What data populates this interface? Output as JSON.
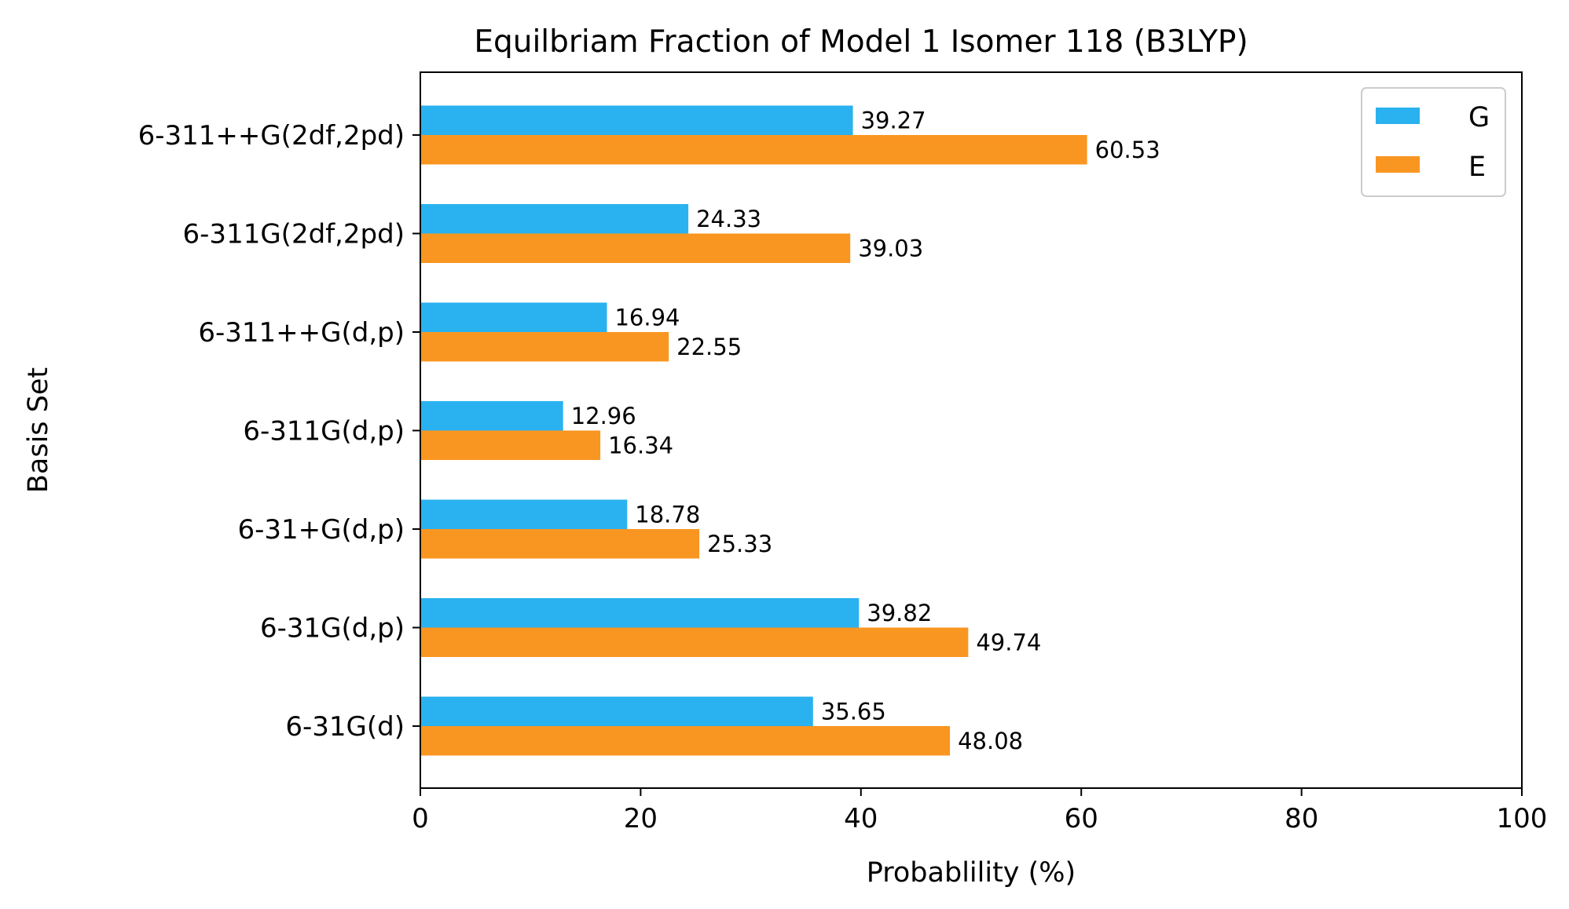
{
  "chart_data": {
    "type": "bar",
    "orientation": "horizontal",
    "title": "Equilbriam Fraction of Model 1 Isomer 118 (B3LYP)",
    "xlabel": "Probablility (%)",
    "ylabel": "Basis Set",
    "xlim": [
      0,
      100
    ],
    "xticks": [
      "0",
      "20",
      "40",
      "60",
      "80",
      "100"
    ],
    "categories": [
      "6-311++G(2df,2pd)",
      "6-311G(2df,2pd)",
      "6-311++G(d,p)",
      "6-311G(d,p)",
      "6-31+G(d,p)",
      "6-31G(d,p)",
      "6-31G(d)"
    ],
    "series": [
      {
        "name": "G",
        "color": "#29b2ef",
        "values": [
          39.27,
          24.33,
          16.94,
          12.96,
          18.78,
          39.82,
          35.65
        ],
        "labels": [
          "39.27",
          "24.33",
          "16.94",
          "12.96",
          "18.78",
          "39.82",
          "35.65"
        ]
      },
      {
        "name": "E",
        "color": "#f99621",
        "values": [
          60.53,
          39.03,
          22.55,
          16.34,
          25.33,
          49.74,
          48.08
        ],
        "labels": [
          "60.53",
          "39.03",
          "22.55",
          "16.34",
          "25.33",
          "49.74",
          "48.08"
        ]
      }
    ],
    "grid": false,
    "legend_position": "top-right"
  }
}
